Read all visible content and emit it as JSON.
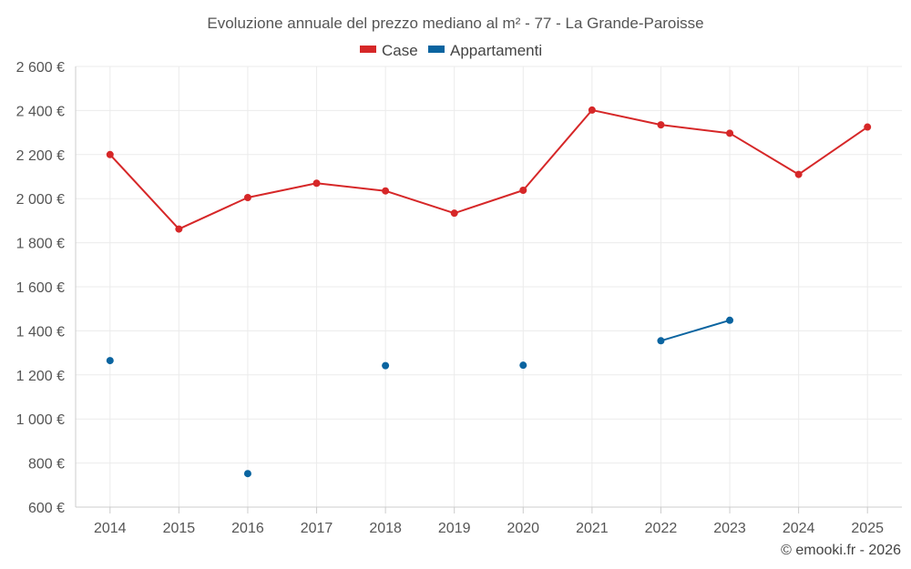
{
  "chart_data": {
    "type": "line",
    "title": "Evoluzione annuale del prezzo mediano al m² - 77 - La Grande-Paroisse",
    "credit": "© emooki.fr - 2026",
    "categories": [
      "2014",
      "2015",
      "2016",
      "2017",
      "2018",
      "2019",
      "2020",
      "2021",
      "2022",
      "2023",
      "2024",
      "2025"
    ],
    "ylim": [
      600,
      2600
    ],
    "yticks": [
      600,
      800,
      1000,
      1200,
      1400,
      1600,
      1800,
      2000,
      2200,
      2400,
      2600
    ],
    "ytick_labels": [
      "600 €",
      "800 €",
      "1 000 €",
      "1 200 €",
      "1 400 €",
      "1 600 €",
      "1 800 €",
      "2 000 €",
      "2 200 €",
      "2 400 €",
      "2 600 €"
    ],
    "grid": true,
    "legend_position": "top-center",
    "series": [
      {
        "name": "Case",
        "color": "#d62728",
        "values": [
          2200,
          1862,
          2005,
          2070,
          2035,
          1934,
          2038,
          2402,
          2335,
          2297,
          2110,
          2325
        ]
      },
      {
        "name": "Appartamenti",
        "color": "#0a64a0",
        "values": [
          1265,
          null,
          752,
          null,
          1242,
          null,
          1244,
          null,
          1355,
          1448,
          null,
          null
        ]
      }
    ]
  }
}
